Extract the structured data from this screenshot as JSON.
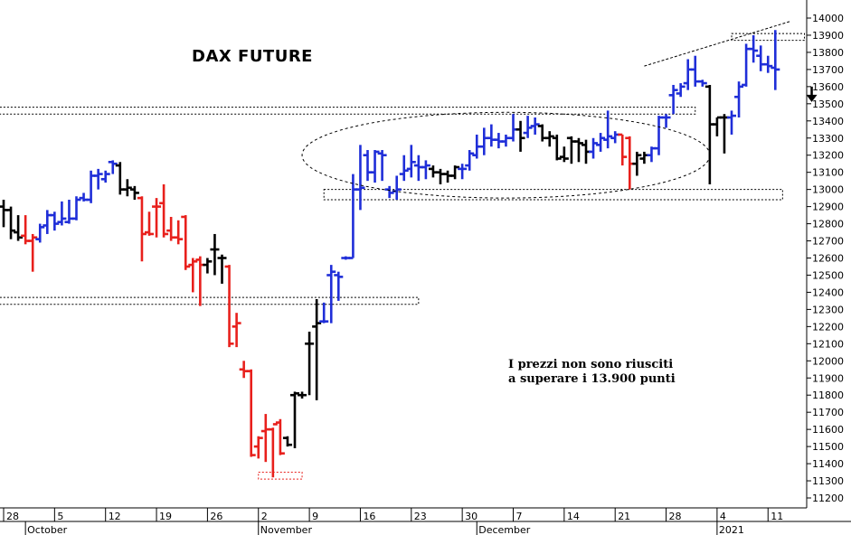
{
  "chart_data": {
    "type": "ohlc",
    "title": "DAX FUTURE",
    "annotation": [
      "I prezzi non sono riusciti",
      "a superare i 13.900 punti"
    ],
    "yaxis": {
      "min": 11200,
      "max": 14000,
      "step": 100,
      "position": "right"
    },
    "x_day_labels": [
      {
        "day": 0,
        "label": "28"
      },
      {
        "day": 7,
        "label": "5"
      },
      {
        "day": 14,
        "label": "12"
      },
      {
        "day": 21,
        "label": "19"
      },
      {
        "day": 28,
        "label": "26"
      },
      {
        "day": 35,
        "label": "2"
      },
      {
        "day": 42,
        "label": "9"
      },
      {
        "day": 49,
        "label": "16"
      },
      {
        "day": 56,
        "label": "23"
      },
      {
        "day": 63,
        "label": "30"
      },
      {
        "day": 70,
        "label": "7"
      },
      {
        "day": 77,
        "label": "14"
      },
      {
        "day": 84,
        "label": "21"
      },
      {
        "day": 91,
        "label": "28"
      },
      {
        "day": 98,
        "label": "4"
      },
      {
        "day": 105,
        "label": "11"
      }
    ],
    "x_month_labels": [
      {
        "day": 3,
        "label": "October"
      },
      {
        "day": 35,
        "label": "November"
      },
      {
        "day": 65,
        "label": "December"
      },
      {
        "day": 98,
        "label": "2021"
      }
    ],
    "colors": {
      "up": "#1f2ed8",
      "down": "#e8201c",
      "neutral": "#000000"
    },
    "bars": [
      {
        "x": 0,
        "o": 12900,
        "h": 12940,
        "l": 12780,
        "c": 12880,
        "color": "neutral"
      },
      {
        "x": 1,
        "o": 12880,
        "h": 12900,
        "l": 12710,
        "c": 12760,
        "color": "neutral"
      },
      {
        "x": 2,
        "o": 12750,
        "h": 12850,
        "l": 12700,
        "c": 12720,
        "color": "neutral"
      },
      {
        "x": 3,
        "o": 12730,
        "h": 12850,
        "l": 12680,
        "c": 12700,
        "color": "down"
      },
      {
        "x": 4,
        "o": 12700,
        "h": 12740,
        "l": 12520,
        "c": 12720,
        "color": "down"
      },
      {
        "x": 5,
        "o": 12710,
        "h": 12800,
        "l": 12690,
        "c": 12780,
        "color": "up"
      },
      {
        "x": 6,
        "o": 12790,
        "h": 12880,
        "l": 12740,
        "c": 12850,
        "color": "up"
      },
      {
        "x": 7,
        "o": 12850,
        "h": 12870,
        "l": 12760,
        "c": 12800,
        "color": "up"
      },
      {
        "x": 8,
        "o": 12810,
        "h": 12930,
        "l": 12790,
        "c": 12830,
        "color": "up"
      },
      {
        "x": 9,
        "o": 12810,
        "h": 12940,
        "l": 12800,
        "c": 12830,
        "color": "up"
      },
      {
        "x": 10,
        "o": 12830,
        "h": 12960,
        "l": 12820,
        "c": 12940,
        "color": "up"
      },
      {
        "x": 11,
        "o": 12950,
        "h": 12980,
        "l": 12930,
        "c": 12940,
        "color": "up"
      },
      {
        "x": 12,
        "o": 12940,
        "h": 13110,
        "l": 12920,
        "c": 13080,
        "color": "up"
      },
      {
        "x": 13,
        "o": 13080,
        "h": 13120,
        "l": 13000,
        "c": 13090,
        "color": "up"
      },
      {
        "x": 14,
        "o": 13060,
        "h": 13110,
        "l": 13040,
        "c": 13090,
        "color": "up"
      },
      {
        "x": 15,
        "o": 13160,
        "h": 13170,
        "l": 13090,
        "c": 13150,
        "color": "up"
      },
      {
        "x": 16,
        "o": 13140,
        "h": 13160,
        "l": 12970,
        "c": 13000,
        "color": "neutral"
      },
      {
        "x": 17,
        "o": 13000,
        "h": 13060,
        "l": 12960,
        "c": 13010,
        "color": "neutral"
      },
      {
        "x": 18,
        "o": 13000,
        "h": 13020,
        "l": 12940,
        "c": 12980,
        "color": "neutral"
      },
      {
        "x": 19,
        "o": 12950,
        "h": 12960,
        "l": 12580,
        "c": 12740,
        "color": "down"
      },
      {
        "x": 20,
        "o": 12750,
        "h": 12870,
        "l": 12730,
        "c": 12740,
        "color": "down"
      },
      {
        "x": 21,
        "o": 12900,
        "h": 12950,
        "l": 12720,
        "c": 12900,
        "color": "down"
      },
      {
        "x": 22,
        "o": 12920,
        "h": 13030,
        "l": 12720,
        "c": 12740,
        "color": "down"
      },
      {
        "x": 23,
        "o": 12760,
        "h": 12840,
        "l": 12700,
        "c": 12720,
        "color": "down"
      },
      {
        "x": 24,
        "o": 12720,
        "h": 12820,
        "l": 12680,
        "c": 12710,
        "color": "down"
      },
      {
        "x": 25,
        "o": 12840,
        "h": 12850,
        "l": 12530,
        "c": 12550,
        "color": "down"
      },
      {
        "x": 26,
        "o": 12560,
        "h": 12600,
        "l": 12400,
        "c": 12580,
        "color": "down"
      },
      {
        "x": 27,
        "o": 12590,
        "h": 12610,
        "l": 12320,
        "c": 12560,
        "color": "down"
      },
      {
        "x": 28,
        "o": 12560,
        "h": 12600,
        "l": 12510,
        "c": 12580,
        "color": "neutral"
      },
      {
        "x": 29,
        "o": 12650,
        "h": 12740,
        "l": 12500,
        "c": 12650,
        "color": "neutral"
      },
      {
        "x": 30,
        "o": 12600,
        "h": 12620,
        "l": 12450,
        "c": 12600,
        "color": "neutral"
      },
      {
        "x": 31,
        "o": 12550,
        "h": 12560,
        "l": 12080,
        "c": 12100,
        "color": "down"
      },
      {
        "x": 32,
        "o": 12200,
        "h": 12280,
        "l": 12080,
        "c": 12220,
        "color": "down"
      },
      {
        "x": 33,
        "o": 11950,
        "h": 12000,
        "l": 11900,
        "c": 11940,
        "color": "down"
      },
      {
        "x": 34,
        "o": 11940,
        "h": 11950,
        "l": 11440,
        "c": 11450,
        "color": "down"
      },
      {
        "x": 35,
        "o": 11500,
        "h": 11560,
        "l": 11430,
        "c": 11550,
        "color": "down"
      },
      {
        "x": 36,
        "o": 11590,
        "h": 11690,
        "l": 11410,
        "c": 11600,
        "color": "down"
      },
      {
        "x": 37,
        "o": 11600,
        "h": 11610,
        "l": 11320,
        "c": 11630,
        "color": "down"
      },
      {
        "x": 38,
        "o": 11640,
        "h": 11660,
        "l": 11450,
        "c": 11460,
        "color": "down"
      },
      {
        "x": 39,
        "o": 11550,
        "h": 11560,
        "l": 11500,
        "c": 11510,
        "color": "neutral"
      },
      {
        "x": 40,
        "o": 11800,
        "h": 11820,
        "l": 11490,
        "c": 11810,
        "color": "neutral"
      },
      {
        "x": 41,
        "o": 11800,
        "h": 11820,
        "l": 11780,
        "c": 11800,
        "color": "neutral"
      },
      {
        "x": 42,
        "o": 12100,
        "h": 12170,
        "l": 11800,
        "c": 12100,
        "color": "neutral"
      },
      {
        "x": 43,
        "o": 12200,
        "h": 12360,
        "l": 11770,
        "c": 12220,
        "color": "neutral"
      },
      {
        "x": 44,
        "o": 12230,
        "h": 12340,
        "l": 12220,
        "c": 12230,
        "color": "up"
      },
      {
        "x": 45,
        "o": 12500,
        "h": 12560,
        "l": 12220,
        "c": 12520,
        "color": "up"
      },
      {
        "x": 46,
        "o": 12500,
        "h": 12520,
        "l": 12350,
        "c": 12490,
        "color": "up"
      },
      {
        "x": 47,
        "o": 12600,
        "h": 12610,
        "l": 12590,
        "c": 12600,
        "color": "up"
      },
      {
        "x": 48,
        "o": 12600,
        "h": 13090,
        "l": 12600,
        "c": 13000,
        "color": "up"
      },
      {
        "x": 49,
        "o": 13000,
        "h": 13260,
        "l": 12880,
        "c": 13010,
        "color": "up"
      },
      {
        "x": 50,
        "o": 13200,
        "h": 13230,
        "l": 13050,
        "c": 13100,
        "color": "up"
      },
      {
        "x": 51,
        "o": 13100,
        "h": 13230,
        "l": 13040,
        "c": 13220,
        "color": "up"
      },
      {
        "x": 52,
        "o": 13210,
        "h": 13230,
        "l": 13050,
        "c": 13200,
        "color": "up"
      },
      {
        "x": 53,
        "o": 13000,
        "h": 13020,
        "l": 12950,
        "c": 12980,
        "color": "up"
      },
      {
        "x": 54,
        "o": 12990,
        "h": 13080,
        "l": 12940,
        "c": 13000,
        "color": "up"
      },
      {
        "x": 55,
        "o": 13090,
        "h": 13200,
        "l": 13050,
        "c": 13110,
        "color": "up"
      },
      {
        "x": 56,
        "o": 13120,
        "h": 13260,
        "l": 13070,
        "c": 13160,
        "color": "up"
      },
      {
        "x": 57,
        "o": 13140,
        "h": 13200,
        "l": 13050,
        "c": 13130,
        "color": "up"
      },
      {
        "x": 58,
        "o": 13130,
        "h": 13170,
        "l": 13060,
        "c": 13140,
        "color": "up"
      },
      {
        "x": 59,
        "o": 13120,
        "h": 13140,
        "l": 13070,
        "c": 13100,
        "color": "neutral"
      },
      {
        "x": 60,
        "o": 13100,
        "h": 13120,
        "l": 13030,
        "c": 13090,
        "color": "neutral"
      },
      {
        "x": 61,
        "o": 13090,
        "h": 13110,
        "l": 13040,
        "c": 13080,
        "color": "neutral"
      },
      {
        "x": 62,
        "o": 13080,
        "h": 13140,
        "l": 13060,
        "c": 13130,
        "color": "neutral"
      },
      {
        "x": 63,
        "o": 13120,
        "h": 13150,
        "l": 13060,
        "c": 13120,
        "color": "up"
      },
      {
        "x": 64,
        "o": 13140,
        "h": 13230,
        "l": 13110,
        "c": 13210,
        "color": "up"
      },
      {
        "x": 65,
        "o": 13200,
        "h": 13320,
        "l": 13180,
        "c": 13250,
        "color": "up"
      },
      {
        "x": 66,
        "o": 13250,
        "h": 13360,
        "l": 13200,
        "c": 13300,
        "color": "up"
      },
      {
        "x": 67,
        "o": 13300,
        "h": 13380,
        "l": 13250,
        "c": 13290,
        "color": "up"
      },
      {
        "x": 68,
        "o": 13290,
        "h": 13330,
        "l": 13240,
        "c": 13280,
        "color": "up"
      },
      {
        "x": 69,
        "o": 13280,
        "h": 13320,
        "l": 13250,
        "c": 13300,
        "color": "up"
      },
      {
        "x": 70,
        "o": 13300,
        "h": 13440,
        "l": 13280,
        "c": 13350,
        "color": "up"
      },
      {
        "x": 71,
        "o": 13350,
        "h": 13400,
        "l": 13220,
        "c": 13300,
        "color": "neutral"
      },
      {
        "x": 72,
        "o": 13330,
        "h": 13430,
        "l": 13300,
        "c": 13360,
        "color": "up"
      },
      {
        "x": 73,
        "o": 13370,
        "h": 13420,
        "l": 13320,
        "c": 13380,
        "color": "up"
      },
      {
        "x": 74,
        "o": 13370,
        "h": 13380,
        "l": 13280,
        "c": 13300,
        "color": "neutral"
      },
      {
        "x": 75,
        "o": 13300,
        "h": 13340,
        "l": 13250,
        "c": 13310,
        "color": "neutral"
      },
      {
        "x": 76,
        "o": 13300,
        "h": 13320,
        "l": 13170,
        "c": 13180,
        "color": "neutral"
      },
      {
        "x": 77,
        "o": 13190,
        "h": 13250,
        "l": 13160,
        "c": 13180,
        "color": "neutral"
      },
      {
        "x": 78,
        "o": 13300,
        "h": 13310,
        "l": 13150,
        "c": 13280,
        "color": "neutral"
      },
      {
        "x": 79,
        "o": 13280,
        "h": 13300,
        "l": 13160,
        "c": 13270,
        "color": "neutral"
      },
      {
        "x": 80,
        "o": 13260,
        "h": 13290,
        "l": 13150,
        "c": 13220,
        "color": "neutral"
      },
      {
        "x": 81,
        "o": 13220,
        "h": 13300,
        "l": 13180,
        "c": 13270,
        "color": "up"
      },
      {
        "x": 82,
        "o": 13260,
        "h": 13330,
        "l": 13220,
        "c": 13300,
        "color": "up"
      },
      {
        "x": 83,
        "o": 13290,
        "h": 13460,
        "l": 13240,
        "c": 13310,
        "color": "up"
      },
      {
        "x": 84,
        "o": 13300,
        "h": 13340,
        "l": 13270,
        "c": 13320,
        "color": "up"
      },
      {
        "x": 85,
        "o": 13320,
        "h": 13320,
        "l": 13140,
        "c": 13190,
        "color": "down"
      },
      {
        "x": 86,
        "o": 13300,
        "h": 13310,
        "l": 13000,
        "c": 13150,
        "color": "down"
      },
      {
        "x": 87,
        "o": 13150,
        "h": 13220,
        "l": 13080,
        "c": 13200,
        "color": "neutral"
      },
      {
        "x": 88,
        "o": 13180,
        "h": 13220,
        "l": 13150,
        "c": 13200,
        "color": "neutral"
      },
      {
        "x": 89,
        "o": 13200,
        "h": 13250,
        "l": 13160,
        "c": 13240,
        "color": "up"
      },
      {
        "x": 90,
        "o": 13240,
        "h": 13430,
        "l": 13200,
        "c": 13420,
        "color": "up"
      },
      {
        "x": 91,
        "o": 13420,
        "h": 13440,
        "l": 13360,
        "c": 13420,
        "color": "up"
      },
      {
        "x": 92,
        "o": 13550,
        "h": 13610,
        "l": 13440,
        "c": 13580,
        "color": "up"
      },
      {
        "x": 93,
        "o": 13560,
        "h": 13620,
        "l": 13540,
        "c": 13600,
        "color": "up"
      },
      {
        "x": 94,
        "o": 13620,
        "h": 13760,
        "l": 13580,
        "c": 13700,
        "color": "up"
      },
      {
        "x": 95,
        "o": 13700,
        "h": 13780,
        "l": 13600,
        "c": 13630,
        "color": "up"
      },
      {
        "x": 96,
        "o": 13630,
        "h": 13640,
        "l": 13600,
        "c": 13620,
        "color": "up"
      },
      {
        "x": 97,
        "o": 13600,
        "h": 13610,
        "l": 13030,
        "c": 13380,
        "color": "neutral"
      },
      {
        "x": 98,
        "o": 13380,
        "h": 13420,
        "l": 13310,
        "c": 13420,
        "color": "neutral"
      },
      {
        "x": 99,
        "o": 13420,
        "h": 13440,
        "l": 13210,
        "c": 13420,
        "color": "neutral"
      },
      {
        "x": 100,
        "o": 13420,
        "h": 13460,
        "l": 13320,
        "c": 13430,
        "color": "up"
      },
      {
        "x": 101,
        "o": 13540,
        "h": 13630,
        "l": 13420,
        "c": 13600,
        "color": "up"
      },
      {
        "x": 102,
        "o": 13610,
        "h": 13850,
        "l": 13600,
        "c": 13820,
        "color": "up"
      },
      {
        "x": 103,
        "o": 13820,
        "h": 13900,
        "l": 13740,
        "c": 13810,
        "color": "up"
      },
      {
        "x": 104,
        "o": 13780,
        "h": 13840,
        "l": 13690,
        "c": 13730,
        "color": "up"
      },
      {
        "x": 105,
        "o": 13730,
        "h": 13780,
        "l": 13680,
        "c": 13720,
        "color": "up"
      },
      {
        "x": 106,
        "o": 13710,
        "h": 13930,
        "l": 13580,
        "c": 13700,
        "color": "up"
      }
    ],
    "zones": [
      {
        "x1": -2,
        "x2": 95,
        "y1": 13440,
        "y2": 13480,
        "color": "#000000"
      },
      {
        "x1": -2,
        "x2": 57,
        "y1": 12330,
        "y2": 12370,
        "color": "#000000"
      },
      {
        "x1": 44,
        "x2": 107,
        "y1": 12940,
        "y2": 13000,
        "color": "#000000"
      },
      {
        "x1": 100,
        "x2": 110,
        "y1": 13870,
        "y2": 13910,
        "color": "#000000"
      },
      {
        "x1": 35,
        "x2": 41,
        "y1": 11310,
        "y2": 11350,
        "color": "#e8201c"
      }
    ],
    "ellipse": {
      "cx": 69,
      "cy": 13200,
      "rx": 28,
      "ry": 250
    },
    "trendline": {
      "x1": 88,
      "y1": 13720,
      "x2": 108,
      "y2": 13980
    },
    "arrow": {
      "x": 111,
      "y": 13600,
      "direction": "down"
    }
  }
}
